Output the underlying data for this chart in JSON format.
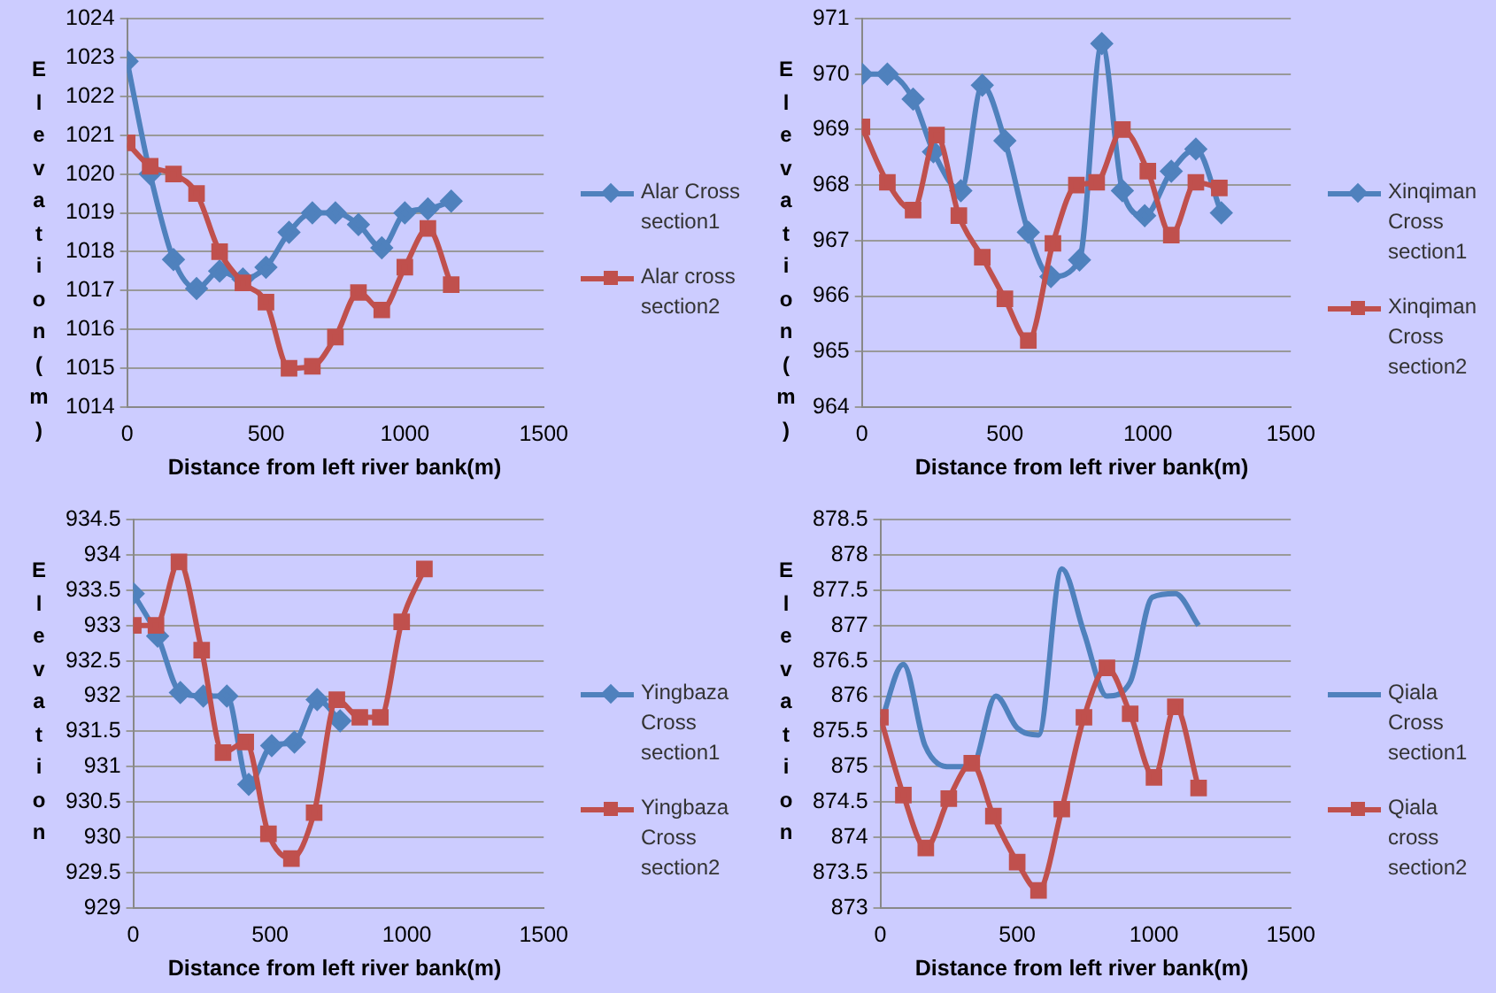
{
  "chart_data": [
    {
      "type": "line",
      "ylabel": "Elevation(m)",
      "xlabel": "Distance from left river bank(m)",
      "xlim": [
        0,
        1500
      ],
      "xticks": [
        0,
        500,
        1000,
        1500
      ],
      "ylim": [
        1014,
        1024
      ],
      "yticks": [
        1014,
        1015,
        1016,
        1017,
        1018,
        1019,
        1020,
        1021,
        1022,
        1023,
        1024
      ],
      "grid": "y",
      "legend": "right",
      "series": [
        {
          "name": "Alar Cross section1",
          "color": "#4f81bd",
          "marker": "diamond",
          "x": [
            0,
            83,
            167,
            250,
            333,
            417,
            500,
            583,
            667,
            750,
            833,
            917,
            1000,
            1083,
            1167
          ],
          "values": [
            1022.9,
            1020.0,
            1017.8,
            1017.05,
            1017.5,
            1017.3,
            1017.6,
            1018.5,
            1019.0,
            1019.0,
            1018.7,
            1018.1,
            1019.0,
            1019.1,
            1019.3
          ]
        },
        {
          "name": "Alar cross section2",
          "color": "#c0504d",
          "marker": "square",
          "x": [
            0,
            83,
            167,
            250,
            333,
            417,
            500,
            583,
            667,
            750,
            833,
            917,
            1000,
            1083,
            1167
          ],
          "values": [
            1020.8,
            1020.2,
            1020.0,
            1019.5,
            1018.0,
            1017.2,
            1016.7,
            1015.0,
            1015.05,
            1015.8,
            1016.95,
            1016.5,
            1017.6,
            1018.6,
            1017.15
          ]
        }
      ]
    },
    {
      "type": "line",
      "ylabel": "Elevation(m)",
      "xlabel": "Distance from left river bank(m)",
      "xlim": [
        0,
        1500
      ],
      "xticks": [
        0,
        500,
        1000,
        1500
      ],
      "ylim": [
        964,
        971
      ],
      "yticks": [
        964,
        965,
        966,
        967,
        968,
        969,
        970,
        971
      ],
      "grid": "y",
      "legend": "right",
      "series": [
        {
          "name": "Xinqiman Cross section1",
          "color": "#4f81bd",
          "marker": "diamond",
          "x": [
            0,
            89,
            179,
            250,
            346,
            421,
            500,
            582,
            661,
            761,
            839,
            911,
            989,
            1082,
            1168,
            1257
          ],
          "values": [
            970.0,
            970.0,
            969.55,
            968.6,
            967.9,
            969.8,
            968.8,
            967.15,
            966.35,
            966.65,
            970.55,
            967.9,
            967.45,
            968.25,
            968.65,
            967.5
          ]
        },
        {
          "name": "Xinqiman Cross section2",
          "color": "#c0504d",
          "marker": "square",
          "x": [
            0,
            89,
            179,
            261,
            339,
            421,
            500,
            582,
            668,
            750,
            821,
            911,
            1000,
            1082,
            1168,
            1250
          ],
          "values": [
            969.05,
            968.05,
            967.55,
            968.9,
            967.45,
            966.7,
            965.95,
            965.2,
            966.95,
            968.0,
            968.05,
            969.0,
            968.25,
            967.1,
            968.05,
            967.95
          ]
        }
      ]
    },
    {
      "type": "line",
      "ylabel": "Elevation",
      "xlabel": "Distance from left river bank(m)",
      "xlim": [
        0,
        1500
      ],
      "xticks": [
        0,
        500,
        1000,
        1500
      ],
      "ylim": [
        929,
        934.5
      ],
      "yticks": [
        929,
        929.5,
        930,
        930.5,
        931,
        931.5,
        932,
        932.5,
        933,
        933.5,
        934,
        934.5
      ],
      "grid": "y",
      "legend": "right",
      "series": [
        {
          "name": "Yingbaza Cross section1",
          "color": "#4f81bd",
          "marker": "diamond",
          "x": [
            0,
            89,
            172,
            256,
            342,
            422,
            506,
            589,
            672,
            756
          ],
          "values": [
            933.45,
            932.85,
            932.05,
            932.0,
            932.0,
            930.75,
            931.3,
            931.35,
            931.95,
            931.65
          ]
        },
        {
          "name": "Yingbaza Cross section2",
          "color": "#c0504d",
          "marker": "square",
          "x": [
            0,
            83,
            167,
            250,
            328,
            411,
            494,
            578,
            661,
            744,
            828,
            903,
            981,
            1064
          ],
          "values": [
            933.0,
            933.0,
            933.9,
            932.65,
            931.2,
            931.35,
            930.05,
            929.7,
            930.35,
            931.95,
            931.7,
            931.7,
            933.05,
            933.8
          ]
        }
      ]
    },
    {
      "type": "line",
      "ylabel": "Elevation",
      "xlabel": "Distance from left river bank(m)",
      "xlim": [
        0,
        1500
      ],
      "xticks": [
        0,
        500,
        1000,
        1500
      ],
      "ylim": [
        873,
        878.5
      ],
      "yticks": [
        873,
        873.5,
        874,
        874.5,
        875,
        875.5,
        876,
        876.5,
        877,
        877.5,
        878,
        878.5
      ],
      "grid": "y",
      "legend": "right",
      "series": [
        {
          "name": "Qiala Cross section1",
          "color": "#4f81bd",
          "marker": "none",
          "x": [
            0,
            84,
            163,
            256,
            334,
            422,
            500,
            578,
            663,
            744,
            828,
            913,
            994,
            1078,
            1163
          ],
          "values": [
            875.6,
            876.45,
            875.3,
            875.0,
            875.0,
            876.0,
            875.55,
            875.45,
            877.8,
            876.9,
            876.0,
            876.2,
            877.4,
            877.45,
            877.0
          ]
        },
        {
          "name": "Qiala cross section2",
          "color": "#c0504d",
          "marker": "square",
          "x": [
            0,
            84,
            166,
            250,
            334,
            413,
            500,
            578,
            663,
            744,
            828,
            913,
            1000,
            1078,
            1163
          ],
          "values": [
            875.7,
            874.6,
            873.85,
            874.55,
            875.05,
            874.3,
            873.65,
            873.25,
            874.4,
            875.7,
            876.4,
            875.75,
            874.85,
            875.85,
            874.7
          ]
        }
      ]
    }
  ]
}
